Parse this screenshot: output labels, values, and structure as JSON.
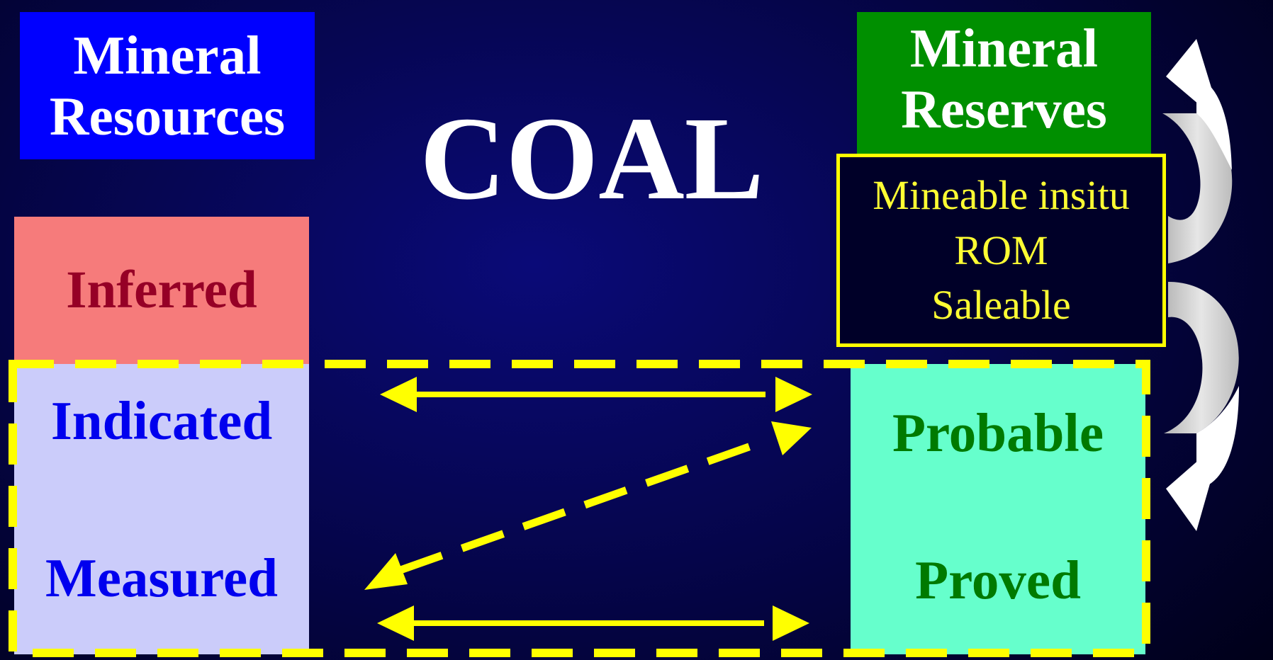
{
  "title": "COAL",
  "resources": {
    "line1": "Mineral",
    "line2": "Resources",
    "color": "#0000ff"
  },
  "reserves": {
    "line1": "Mineral",
    "line2": "Reserves",
    "color": "#008f00"
  },
  "resource_categories": {
    "inferred": "Inferred",
    "indicated": "Indicated",
    "measured": "Measured"
  },
  "reserve_categories": {
    "probable": "Probable",
    "proved": "Proved"
  },
  "mining_stages": [
    "Mineable insitu",
    "ROM",
    "Saleable"
  ],
  "colors": {
    "inferred_bg": "#f67b7b",
    "indicated_measured_bg": "#cbccfa",
    "probable_proved_bg": "#66ffcc",
    "arrows": "#ffff00"
  }
}
